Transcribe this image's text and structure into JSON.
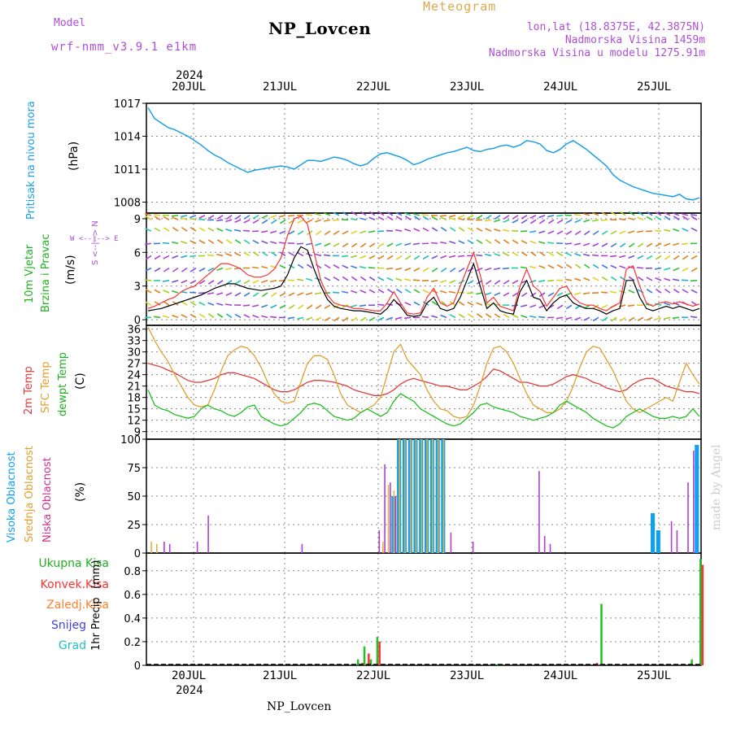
{
  "header": {
    "model_label": "Model",
    "model_value": "wrf-nmm_v3.9.1 e1km",
    "title": "NP_Lovcen",
    "meteogram_label": "Meteogram",
    "lonlat": "lon,lat (18.8375E, 42.3875N)",
    "elevation": "Nadmorska Visina 1459m",
    "model_elevation": "Nadmorska Visina u modelu 1275.91m"
  },
  "footer": {
    "station": "NP_Lovcen",
    "credit": "made by Angel"
  },
  "axis_dates": {
    "year": "2024",
    "days": [
      "20JUL",
      "21JUL",
      "22JUL",
      "23JUL",
      "24JUL",
      "25JUL"
    ]
  },
  "colors": {
    "pressure": "#1aa0e6",
    "wind_speed": "#000000",
    "wind_gust": "#ff3030",
    "t2m": "#e03b3b",
    "tsfc": "#e0a030",
    "dewpoint": "#20c020",
    "cloud_high": "#10a0f0",
    "cloud_mid": "#e0b040",
    "cloud_low": "#b040d0",
    "precip_total": "#20c020",
    "precip_conv": "#ff3030",
    "precip_frozen": "#ff8030",
    "precip_snow": "#4040e0",
    "precip_grad": "#20c0c0"
  },
  "panel_labels": {
    "pressure": {
      "name": "Pritisak na nivou mora",
      "unit": "(hPa)"
    },
    "wind": {
      "name1": "10m Vjetar",
      "name2": "Brzina i Pravac",
      "unit": "(m/s)",
      "dirs": "W <--|--> E",
      "dirs2": "S <--|--> N"
    },
    "temp": {
      "t2m": "2m Temp",
      "tsfc": "SFC Temp",
      "dew": "dewpt Temp",
      "unit": "(C)"
    },
    "cloud": {
      "high": "Visoka Oblacnost",
      "mid": "Srednja Oblacnost",
      "low": "Niska Oblacnost",
      "unit": "(%)"
    },
    "precip": {
      "legend": [
        "Ukupna Kisa",
        "Konvek.Kisa",
        "Zaledj.Kisa",
        "Snijeg",
        "Grad"
      ],
      "name": "1hr Precip",
      "unit": "(mm)"
    }
  },
  "chart_data": [
    {
      "type": "line",
      "ylabel": "(hPa)",
      "ylim": [
        1007,
        1017
      ],
      "yticks": [
        1008,
        1011,
        1014,
        1017
      ],
      "series": [
        {
          "values": [
            1016.6,
            1015.6,
            1015.2,
            1014.8,
            1014.6,
            1014.3,
            1014.0,
            1013.6,
            1013.2,
            1012.7,
            1012.3,
            1012.0,
            1011.6,
            1011.3,
            1011.0,
            1010.7,
            1010.9,
            1011.0,
            1011.1,
            1011.2,
            1011.3,
            1011.2,
            1011.0,
            1011.4,
            1011.8,
            1011.8,
            1011.7,
            1011.9,
            1012.1,
            1012.0,
            1011.8,
            1011.5,
            1011.3,
            1011.5,
            1012.0,
            1012.4,
            1012.5,
            1012.3,
            1012.1,
            1011.8,
            1011.4,
            1011.6,
            1011.9,
            1012.1,
            1012.3,
            1012.5,
            1012.6,
            1012.8,
            1013.0,
            1012.7,
            1012.6,
            1012.8,
            1012.9,
            1013.1,
            1013.2,
            1013.0,
            1013.2,
            1013.6,
            1013.5,
            1013.3,
            1012.7,
            1012.5,
            1012.8,
            1013.3,
            1013.6,
            1013.2,
            1012.8,
            1012.3,
            1011.8,
            1011.3,
            1010.5,
            1010.0,
            1009.7,
            1009.4,
            1009.2,
            1009.0,
            1008.8,
            1008.7,
            1008.6,
            1008.5,
            1008.7,
            1008.3,
            1008.2,
            1008.4
          ]
        }
      ]
    },
    {
      "type": "line",
      "ylabel": "(m/s)",
      "ylim": [
        -0.5,
        9.5
      ],
      "yticks": [
        0,
        3,
        6,
        9
      ],
      "series": [
        {
          "values": [
            0.8,
            0.9,
            1.0,
            1.2,
            1.4,
            1.6,
            1.8,
            2.0,
            2.2,
            2.5,
            2.8,
            3.0,
            3.2,
            3.2,
            3.0,
            2.8,
            2.7,
            2.6,
            2.7,
            2.8,
            3.0,
            4.0,
            5.5,
            6.5,
            6.2,
            4.5,
            3.0,
            1.8,
            1.2,
            1.0,
            0.9,
            0.8,
            0.8,
            0.7,
            0.6,
            0.5,
            1.0,
            1.8,
            1.2,
            0.4,
            0.3,
            0.4,
            1.5,
            2.0,
            1.0,
            0.8,
            1.0,
            2.0,
            3.5,
            5.0,
            3.0,
            1.0,
            1.5,
            0.8,
            0.6,
            0.5,
            2.5,
            3.5,
            2.0,
            1.8,
            0.8,
            1.5,
            2.0,
            2.2,
            1.5,
            1.2,
            1.0,
            1.0,
            0.8,
            0.5,
            0.8,
            1.0,
            3.5,
            3.5,
            2.0,
            1.0,
            0.8,
            1.0,
            1.2,
            1.0,
            1.2,
            1.0,
            0.8,
            1.0
          ]
        },
        {
          "values": [
            1.0,
            1.2,
            1.5,
            1.8,
            2.0,
            2.5,
            2.8,
            3.0,
            3.5,
            4.0,
            4.5,
            5.0,
            5.0,
            4.8,
            4.5,
            4.0,
            3.8,
            3.8,
            4.0,
            4.5,
            5.5,
            7.5,
            9.0,
            9.2,
            8.5,
            6.0,
            3.5,
            2.2,
            1.5,
            1.3,
            1.2,
            1.0,
            1.0,
            0.9,
            0.8,
            0.8,
            1.5,
            2.5,
            1.5,
            0.6,
            0.5,
            0.6,
            2.0,
            2.8,
            1.5,
            1.2,
            1.5,
            3.0,
            4.5,
            6.0,
            4.0,
            1.5,
            2.0,
            1.2,
            1.0,
            0.8,
            3.0,
            4.5,
            3.0,
            2.5,
            1.2,
            2.0,
            2.8,
            3.0,
            2.0,
            1.5,
            1.3,
            1.3,
            1.0,
            0.8,
            1.2,
            1.5,
            4.5,
            4.8,
            3.0,
            1.5,
            1.2,
            1.5,
            1.6,
            1.4,
            1.6,
            1.4,
            1.2,
            1.4
          ]
        }
      ],
      "wind_barb_rows": [
        0,
        1,
        2,
        3,
        4,
        5,
        6,
        7,
        8,
        9
      ]
    },
    {
      "type": "line",
      "ylabel": "(C)",
      "ylim": [
        7,
        37
      ],
      "yticks": [
        9,
        12,
        15,
        18,
        21,
        24,
        27,
        30,
        33,
        36
      ],
      "series": [
        {
          "values": [
            27,
            26.5,
            26,
            25.2,
            24.5,
            23.5,
            22.5,
            22,
            22,
            22.5,
            23,
            24,
            24.5,
            24.5,
            24,
            23.5,
            23,
            22,
            21,
            20,
            19.5,
            19.5,
            20,
            21,
            22,
            22.5,
            22.5,
            22.3,
            22,
            21.5,
            21,
            20,
            19.5,
            19,
            18.5,
            18.5,
            19,
            20,
            21.5,
            22.5,
            23,
            22.5,
            22,
            21.5,
            21,
            21,
            20.5,
            20,
            20,
            21,
            22,
            23.5,
            25.5,
            25,
            24,
            23,
            22,
            22,
            21.5,
            21,
            21,
            21.5,
            22.5,
            23.5,
            24,
            23.5,
            23,
            22,
            21.5,
            20.5,
            20,
            19.5,
            20,
            21.5,
            22.5,
            23,
            23,
            22,
            21,
            20.5,
            20,
            19.5,
            19.5,
            19
          ]
        },
        {
          "values": [
            36.5,
            33,
            30,
            27.5,
            24,
            21,
            18,
            16,
            15.5,
            16,
            20,
            25,
            29,
            30.5,
            31.5,
            31,
            29,
            26,
            22,
            19,
            17,
            16.5,
            17,
            22,
            27,
            29,
            29,
            28,
            24,
            19,
            16,
            15,
            14,
            15,
            16,
            18,
            24,
            30,
            32,
            28,
            26,
            24,
            20,
            17,
            15,
            14.5,
            13,
            12.5,
            13,
            16,
            21,
            27,
            31,
            31.5,
            30,
            27,
            23,
            19,
            16,
            15,
            14,
            14,
            15,
            17,
            21,
            26,
            30,
            31.5,
            31,
            28,
            25,
            21,
            17,
            15,
            14,
            15,
            16,
            17,
            18,
            17,
            22,
            27,
            24,
            21.5
          ]
        },
        {
          "values": [
            20,
            16,
            15,
            14.5,
            13.5,
            13,
            12.5,
            13,
            15,
            16,
            15,
            14.5,
            13.5,
            13,
            14,
            15.5,
            16,
            13,
            12,
            11,
            10.5,
            11,
            12.5,
            14,
            16,
            16.5,
            16,
            14.5,
            13,
            12.5,
            12,
            12.5,
            14,
            15,
            14,
            13,
            14,
            17,
            19,
            18,
            17,
            15,
            14,
            13,
            12,
            11,
            10.5,
            11,
            12.5,
            14,
            16,
            16.5,
            15.5,
            15,
            14.5,
            14,
            13,
            12.5,
            12,
            12.5,
            13,
            14,
            16,
            17,
            16,
            15,
            14,
            12.5,
            11.5,
            10.5,
            10,
            11,
            13,
            14,
            15,
            14,
            13,
            12.5,
            12.5,
            13,
            12.5,
            13,
            15,
            13
          ]
        }
      ]
    },
    {
      "type": "bar",
      "ylabel": "(%)",
      "ylim": [
        0,
        100
      ],
      "yticks": [
        0,
        25,
        50,
        75,
        100
      ],
      "series": [
        {
          "values": [
            0,
            0,
            0,
            0,
            0,
            0,
            0,
            0,
            0,
            0,
            0,
            0,
            0,
            0,
            0,
            0,
            0,
            0,
            0,
            0,
            0,
            0,
            0,
            0,
            0,
            0,
            0,
            0,
            0,
            0,
            0,
            0,
            0,
            0,
            0,
            0,
            0,
            0,
            0,
            0,
            0,
            0,
            0,
            0,
            50,
            100,
            100,
            100,
            100,
            100,
            100,
            100,
            100,
            100,
            0,
            0,
            0,
            0,
            0,
            0,
            0,
            0,
            0,
            0,
            0,
            0,
            0,
            0,
            0,
            0,
            0,
            0,
            0,
            0,
            0,
            0,
            0,
            0,
            0,
            0,
            0,
            0,
            0,
            0,
            0,
            0,
            0,
            0,
            0,
            0,
            0,
            35,
            20,
            0,
            0,
            0,
            0,
            0,
            0,
            95
          ]
        },
        {
          "values": [
            10,
            8,
            0,
            0,
            0,
            0,
            0,
            0,
            0,
            0,
            0,
            0,
            0,
            0,
            0,
            0,
            0,
            0,
            0,
            0,
            0,
            0,
            0,
            0,
            0,
            0,
            0,
            0,
            0,
            0,
            0,
            0,
            0,
            0,
            0,
            0,
            0,
            0,
            0,
            0,
            0,
            0,
            10,
            60,
            55,
            100,
            100,
            100,
            100,
            100,
            100,
            100,
            100,
            100,
            0,
            0,
            0,
            0,
            0,
            0,
            0,
            0,
            0,
            0,
            0,
            0,
            0,
            0,
            0,
            0,
            0,
            0,
            0,
            0,
            0,
            0,
            0,
            0,
            0,
            0,
            0,
            0,
            0,
            0,
            0,
            0,
            0,
            0,
            0,
            0,
            0,
            0,
            0,
            0,
            0,
            0,
            0,
            0,
            0,
            0
          ]
        },
        {
          "values": [
            0,
            0,
            10,
            8,
            0,
            0,
            0,
            0,
            10,
            0,
            33,
            0,
            0,
            0,
            0,
            0,
            0,
            0,
            0,
            0,
            0,
            0,
            0,
            0,
            0,
            0,
            0,
            8,
            0,
            0,
            0,
            0,
            0,
            0,
            0,
            0,
            0,
            0,
            0,
            0,
            0,
            20,
            78,
            62,
            50,
            0,
            0,
            0,
            0,
            0,
            0,
            0,
            0,
            0,
            18,
            0,
            0,
            0,
            10,
            0,
            0,
            0,
            0,
            0,
            0,
            0,
            0,
            0,
            0,
            0,
            72,
            15,
            8,
            0,
            0,
            0,
            0,
            0,
            0,
            0,
            0,
            0,
            0,
            0,
            0,
            0,
            0,
            0,
            0,
            0,
            0,
            0,
            0,
            0,
            28,
            20,
            0,
            62,
            90,
            0
          ]
        }
      ]
    },
    {
      "type": "bar",
      "ylabel": "1hr Precip (mm)",
      "ylim": [
        0,
        0.95
      ],
      "yticks": [
        0,
        0.2,
        0.4,
        0.6,
        0.8
      ],
      "series": [
        {
          "name": "Ukupna Kisa",
          "values": [
            {
              "x": 48.5,
              "v": 0.05
            },
            {
              "x": 50,
              "v": 0.16
            },
            {
              "x": 51.5,
              "v": 0.05
            },
            {
              "x": 53,
              "v": 0.24
            },
            {
              "x": 81,
              "v": 0.01
            },
            {
              "x": 105,
              "v": 0.52
            },
            {
              "x": 126,
              "v": 0.05
            },
            {
              "x": 128,
              "v": 0.9
            }
          ]
        },
        {
          "name": "Konvek.Kisa",
          "values": [
            {
              "x": 49.5,
              "v": 0.02
            },
            {
              "x": 51,
              "v": 0.1
            },
            {
              "x": 53.5,
              "v": 0.2
            },
            {
              "x": 104,
              "v": 0.02
            },
            {
              "x": 128.5,
              "v": 0.85
            }
          ]
        }
      ]
    }
  ]
}
